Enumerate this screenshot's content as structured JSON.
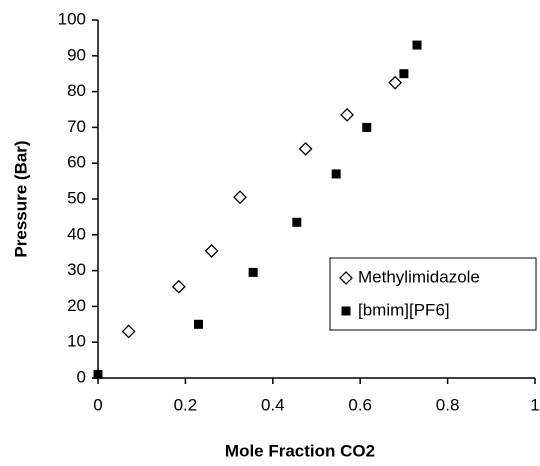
{
  "chart_data": {
    "type": "scatter",
    "x_label": "Mole Fraction CO2",
    "y_label": "Pressure (Bar)",
    "xlim": [
      0,
      1
    ],
    "ylim": [
      0,
      100
    ],
    "xticks": [
      0,
      0.2,
      0.4,
      0.6,
      0.8,
      1
    ],
    "yticks": [
      0,
      10,
      20,
      30,
      40,
      50,
      60,
      70,
      80,
      90,
      100
    ],
    "legend": "lower right",
    "series": [
      {
        "name": "Methylimidazole",
        "marker": "open-diamond",
        "color": "#000000",
        "x": [
          0.07,
          0.185,
          0.26,
          0.325,
          0.475,
          0.57,
          0.68
        ],
        "values": [
          13,
          25.5,
          35.5,
          50.5,
          64,
          73.5,
          82.5
        ]
      },
      {
        "name": "[bmim][PF6]",
        "marker": "filled-square",
        "color": "#000000",
        "x": [
          0,
          0.23,
          0.355,
          0.455,
          0.545,
          0.615,
          0.7,
          0.73
        ],
        "values": [
          1,
          15,
          29.5,
          43.5,
          57,
          70,
          85,
          93
        ]
      }
    ]
  }
}
